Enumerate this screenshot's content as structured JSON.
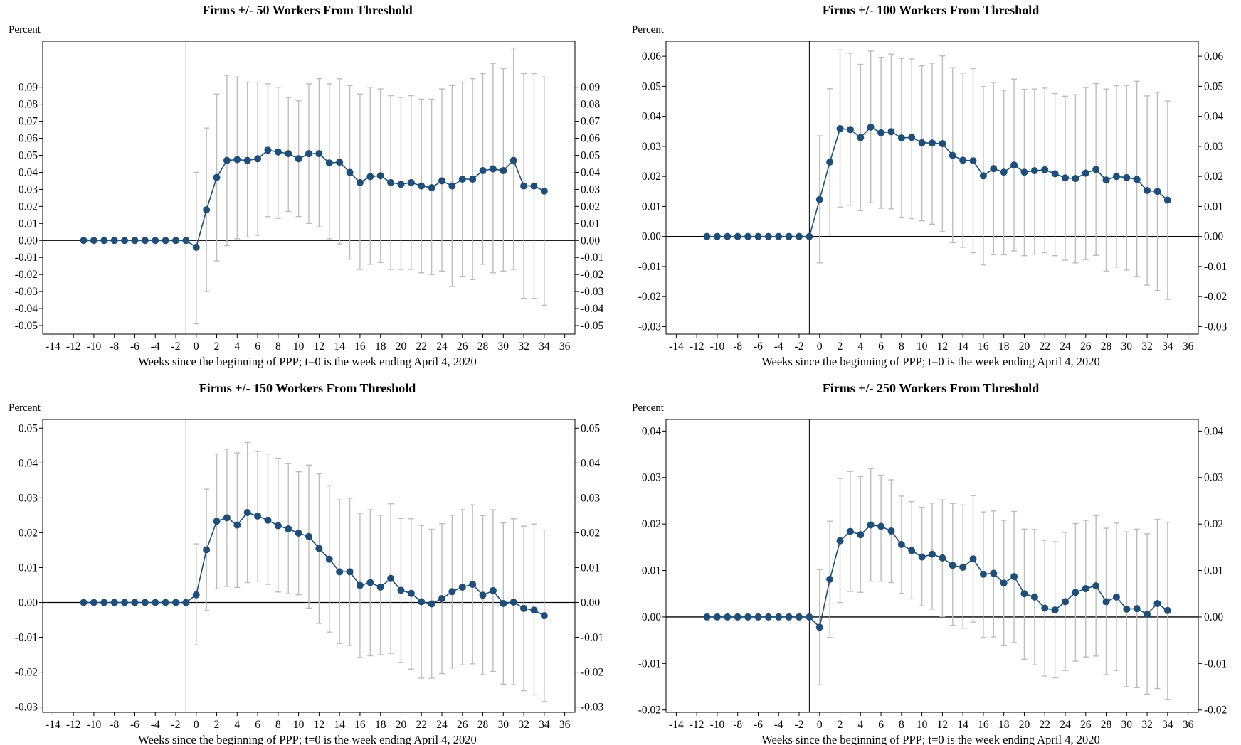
{
  "colors": {
    "series": "#1f4e79",
    "ci": "#bdbdbd",
    "axis": "#000000"
  },
  "chart_data": [
    {
      "type": "line",
      "title": "Firms +/- 50 Workers From Threshold",
      "ylabel": "Percent",
      "xlabel": "Weeks since the beginning of PPP; t=0 is the week ending April 4, 2020",
      "xlim": [
        -15,
        37
      ],
      "ylim": [
        -0.055,
        0.117
      ],
      "xticks": [
        -14,
        -12,
        -10,
        -8,
        -6,
        -4,
        -2,
        0,
        2,
        4,
        6,
        8,
        10,
        12,
        14,
        16,
        18,
        20,
        22,
        24,
        26,
        28,
        30,
        32,
        34,
        36
      ],
      "yticks": [
        -0.05,
        -0.04,
        -0.03,
        -0.02,
        -0.01,
        0,
        0.01,
        0.02,
        0.03,
        0.04,
        0.05,
        0.06,
        0.07,
        0.08,
        0.09
      ],
      "ytick_labels": [
        "-0.05",
        "-0.04",
        "-0.03",
        "-0.02",
        "-0.01",
        "0.00",
        "0.01",
        "0.02",
        "0.03",
        "0.04",
        "0.05",
        "0.06",
        "0.07",
        "0.08",
        "0.09"
      ],
      "series": [
        {
          "x": [
            -11,
            -10,
            -9,
            -8,
            -7,
            -6,
            -5,
            -4,
            -3,
            -2,
            -1,
            0,
            1,
            2,
            3,
            4,
            5,
            6,
            7,
            8,
            9,
            10,
            11,
            12,
            13,
            14,
            15,
            16,
            17,
            18,
            19,
            20,
            21,
            22,
            23,
            24,
            25,
            26,
            27,
            28,
            29,
            30,
            31,
            32,
            33,
            34
          ],
          "y": [
            0,
            0,
            0,
            0,
            0,
            0,
            0,
            0,
            0,
            0,
            0,
            -0.004,
            0.018,
            0.037,
            0.047,
            0.0475,
            0.047,
            0.048,
            0.053,
            0.052,
            0.051,
            0.048,
            0.051,
            0.051,
            0.0455,
            0.046,
            0.04,
            0.034,
            0.0375,
            0.038,
            0.034,
            0.033,
            0.034,
            0.032,
            0.031,
            0.035,
            0.032,
            0.036,
            0.036,
            0.041,
            0.042,
            0.041,
            0.047,
            0.032,
            0.032,
            0.029
          ],
          "ci_low": [
            null,
            null,
            null,
            null,
            null,
            null,
            null,
            null,
            null,
            null,
            null,
            -0.049,
            -0.03,
            -0.012,
            -0.003,
            0.001,
            0.002,
            0.003,
            0.014,
            0.013,
            0.017,
            0.014,
            0.01,
            0.008,
            0.001,
            -0.002,
            -0.011,
            -0.017,
            -0.014,
            -0.013,
            -0.017,
            -0.017,
            -0.017,
            -0.019,
            -0.02,
            -0.018,
            -0.027,
            -0.021,
            -0.023,
            -0.014,
            -0.019,
            -0.018,
            -0.017,
            -0.034,
            -0.034,
            -0.038
          ],
          "ci_high": [
            null,
            null,
            null,
            null,
            null,
            null,
            null,
            null,
            null,
            null,
            null,
            0.04,
            0.066,
            0.086,
            0.097,
            0.096,
            0.093,
            0.093,
            0.092,
            0.09,
            0.084,
            0.082,
            0.092,
            0.095,
            0.092,
            0.095,
            0.091,
            0.086,
            0.09,
            0.089,
            0.085,
            0.084,
            0.085,
            0.083,
            0.083,
            0.089,
            0.091,
            0.093,
            0.095,
            0.098,
            0.104,
            0.101,
            0.113,
            0.098,
            0.098,
            0.096
          ]
        }
      ]
    },
    {
      "type": "line",
      "title": "Firms +/- 100 Workers From Threshold",
      "ylabel": "Percent",
      "xlabel": "Weeks since the beginning of PPP; t=0 is the week ending April 4, 2020",
      "xlim": [
        -15,
        37
      ],
      "ylim": [
        -0.0325,
        0.065
      ],
      "xticks": [
        -14,
        -12,
        -10,
        -8,
        -6,
        -4,
        -2,
        0,
        2,
        4,
        6,
        8,
        10,
        12,
        14,
        16,
        18,
        20,
        22,
        24,
        26,
        28,
        30,
        32,
        34,
        36
      ],
      "yticks": [
        -0.03,
        -0.02,
        -0.01,
        0,
        0.01,
        0.02,
        0.03,
        0.04,
        0.05,
        0.06
      ],
      "ytick_labels": [
        "-0.03",
        "-0.02",
        "-0.01",
        "0.00",
        "0.01",
        "0.02",
        "0.03",
        "0.04",
        "0.05",
        "0.06"
      ],
      "series": [
        {
          "x": [
            -11,
            -10,
            -9,
            -8,
            -7,
            -6,
            -5,
            -4,
            -3,
            -2,
            -1,
            0,
            1,
            2,
            3,
            4,
            5,
            6,
            7,
            8,
            9,
            10,
            11,
            12,
            13,
            14,
            15,
            16,
            17,
            18,
            19,
            20,
            21,
            22,
            23,
            24,
            25,
            26,
            27,
            28,
            29,
            30,
            31,
            32,
            33,
            34
          ],
          "y": [
            0,
            0,
            0,
            0,
            0,
            0,
            0,
            0,
            0,
            0,
            0,
            0.0123,
            0.0248,
            0.0359,
            0.0356,
            0.0329,
            0.0364,
            0.0345,
            0.0349,
            0.0328,
            0.033,
            0.0312,
            0.0311,
            0.0309,
            0.027,
            0.0254,
            0.0252,
            0.0202,
            0.0226,
            0.0214,
            0.0238,
            0.0214,
            0.0219,
            0.0222,
            0.0209,
            0.0195,
            0.0193,
            0.0211,
            0.0223,
            0.0188,
            0.02,
            0.0196,
            0.019,
            0.0153,
            0.015,
            0.0121
          ],
          "ci_low": [
            null,
            null,
            null,
            null,
            null,
            null,
            null,
            null,
            null,
            null,
            null,
            -0.0088,
            0.0005,
            0.0098,
            0.0104,
            0.0086,
            0.0112,
            0.0094,
            0.0092,
            0.0064,
            0.006,
            0.0052,
            0.0041,
            0.0016,
            -0.0021,
            -0.0036,
            -0.0054,
            -0.0095,
            -0.0061,
            -0.0061,
            -0.0048,
            -0.0064,
            -0.0059,
            -0.0054,
            -0.0064,
            -0.0079,
            -0.0088,
            -0.0077,
            -0.0063,
            -0.0115,
            -0.0102,
            -0.0112,
            -0.0133,
            -0.0162,
            -0.018,
            -0.0209
          ],
          "ci_high": [
            null,
            null,
            null,
            null,
            null,
            null,
            null,
            null,
            null,
            null,
            null,
            0.0335,
            0.0492,
            0.0621,
            0.061,
            0.0573,
            0.0617,
            0.0596,
            0.0607,
            0.0593,
            0.0591,
            0.0568,
            0.0577,
            0.0601,
            0.0562,
            0.0544,
            0.0559,
            0.0499,
            0.0513,
            0.0487,
            0.0524,
            0.049,
            0.0491,
            0.0494,
            0.0476,
            0.0467,
            0.0472,
            0.0496,
            0.0509,
            0.0491,
            0.0502,
            0.0503,
            0.0517,
            0.0468,
            0.048,
            0.0451
          ]
        }
      ]
    },
    {
      "type": "line",
      "title": "Firms +/- 150 Workers From Threshold",
      "ylabel": "Percent",
      "xlabel": "Weeks since the beginning of PPP; t=0 is the week ending April 4, 2020",
      "xlim": [
        -15,
        37
      ],
      "ylim": [
        -0.0315,
        0.0525
      ],
      "xticks": [
        -14,
        -12,
        -10,
        -8,
        -6,
        -4,
        -2,
        0,
        2,
        4,
        6,
        8,
        10,
        12,
        14,
        16,
        18,
        20,
        22,
        24,
        26,
        28,
        30,
        32,
        34,
        36
      ],
      "yticks": [
        -0.03,
        -0.02,
        -0.01,
        0,
        0.01,
        0.02,
        0.03,
        0.04,
        0.05
      ],
      "ytick_labels": [
        "-0.03",
        "-0.02",
        "-0.01",
        "0.00",
        "0.01",
        "0.02",
        "0.03",
        "0.04",
        "0.05"
      ],
      "series": [
        {
          "x": [
            -11,
            -10,
            -9,
            -8,
            -7,
            -6,
            -5,
            -4,
            -3,
            -2,
            -1,
            0,
            1,
            2,
            3,
            4,
            5,
            6,
            7,
            8,
            9,
            10,
            11,
            12,
            13,
            14,
            15,
            16,
            17,
            18,
            19,
            20,
            21,
            22,
            23,
            24,
            25,
            26,
            27,
            28,
            29,
            30,
            31,
            32,
            33,
            34
          ],
          "y": [
            0,
            0,
            0,
            0,
            0,
            0,
            0,
            0,
            0,
            0,
            0,
            0.0022,
            0.0151,
            0.0233,
            0.0243,
            0.0222,
            0.0258,
            0.0248,
            0.0236,
            0.022,
            0.0211,
            0.0199,
            0.0189,
            0.0155,
            0.0124,
            0.0088,
            0.0088,
            0.0049,
            0.0057,
            0.0044,
            0.0069,
            0.0035,
            0.0026,
            0.0002,
            -0.0004,
            0.0011,
            0.0031,
            0.0044,
            0.0052,
            0.0021,
            0.0034,
            -0.0003,
            0.0001,
            -0.0017,
            -0.0022,
            -0.0038
          ],
          "ci_low": [
            null,
            null,
            null,
            null,
            null,
            null,
            null,
            null,
            null,
            null,
            null,
            -0.0122,
            -0.0023,
            0.0039,
            0.0046,
            0.0043,
            0.0057,
            0.0061,
            0.0052,
            0.003,
            0.0025,
            0.0022,
            -0.0016,
            -0.006,
            -0.0085,
            -0.0118,
            -0.0123,
            -0.0158,
            -0.0153,
            -0.015,
            -0.0146,
            -0.0172,
            -0.0191,
            -0.0217,
            -0.0217,
            -0.0204,
            -0.0188,
            -0.0179,
            -0.0176,
            -0.0207,
            -0.0198,
            -0.0234,
            -0.0236,
            -0.0253,
            -0.0265,
            -0.0284
          ],
          "ci_high": [
            null,
            null,
            null,
            null,
            null,
            null,
            null,
            null,
            null,
            null,
            null,
            0.0168,
            0.0325,
            0.0426,
            0.044,
            0.0429,
            0.0459,
            0.0433,
            0.0426,
            0.0414,
            0.0398,
            0.0375,
            0.0394,
            0.0369,
            0.0335,
            0.0294,
            0.0299,
            0.0256,
            0.0266,
            0.025,
            0.0283,
            0.0241,
            0.024,
            0.0221,
            0.021,
            0.0226,
            0.025,
            0.0266,
            0.028,
            0.0249,
            0.0266,
            0.0228,
            0.024,
            0.0219,
            0.0225,
            0.0208
          ]
        }
      ]
    },
    {
      "type": "line",
      "title": "Firms +/- 250 Workers From Threshold",
      "ylabel": "Percent",
      "xlabel": "Weeks since the beginning of PPP; t=0 is the week ending April 4, 2020",
      "xlim": [
        -15,
        37
      ],
      "ylim": [
        -0.0205,
        0.0425
      ],
      "xticks": [
        -14,
        -12,
        -10,
        -8,
        -6,
        -4,
        -2,
        0,
        2,
        4,
        6,
        8,
        10,
        12,
        14,
        16,
        18,
        20,
        22,
        24,
        26,
        28,
        30,
        32,
        34,
        36
      ],
      "yticks": [
        -0.02,
        -0.01,
        0,
        0.01,
        0.02,
        0.03,
        0.04
      ],
      "ytick_labels": [
        "-0.02",
        "-0.01",
        "0.00",
        "0.01",
        "0.02",
        "0.03",
        "0.04"
      ],
      "series": [
        {
          "x": [
            -11,
            -10,
            -9,
            -8,
            -7,
            -6,
            -5,
            -4,
            -3,
            -2,
            -1,
            0,
            1,
            2,
            3,
            4,
            5,
            6,
            7,
            8,
            9,
            10,
            11,
            12,
            13,
            14,
            15,
            16,
            17,
            18,
            19,
            20,
            21,
            22,
            23,
            24,
            25,
            26,
            27,
            28,
            29,
            30,
            31,
            32,
            33,
            34
          ],
          "y": [
            0,
            0,
            0,
            0,
            0,
            0,
            0,
            0,
            0,
            0,
            0,
            -0.0022,
            0.0081,
            0.0164,
            0.0184,
            0.0177,
            0.0198,
            0.0195,
            0.0185,
            0.0156,
            0.0143,
            0.0129,
            0.0135,
            0.0127,
            0.0111,
            0.0107,
            0.0125,
            0.0092,
            0.0094,
            0.0073,
            0.0087,
            0.005,
            0.0043,
            0.0019,
            0.0015,
            0.0033,
            0.0053,
            0.0061,
            0.0067,
            0.0033,
            0.0043,
            0.0017,
            0.0018,
            0.0006,
            0.0029,
            0.0014
          ],
          "ci_low": [
            null,
            null,
            null,
            null,
            null,
            null,
            null,
            null,
            null,
            null,
            null,
            -0.0146,
            -0.0044,
            0.0031,
            0.0055,
            0.0053,
            0.0077,
            0.0077,
            0.0074,
            0.0051,
            0.0039,
            0.0024,
            0.0017,
            0.0001,
            -0.0018,
            -0.0024,
            -0.0011,
            -0.0044,
            -0.0043,
            -0.0062,
            -0.0055,
            -0.0091,
            -0.0103,
            -0.0127,
            -0.0131,
            -0.0115,
            -0.0095,
            -0.0086,
            -0.0084,
            -0.0124,
            -0.0115,
            -0.015,
            -0.0152,
            -0.0166,
            -0.0154,
            -0.0177
          ],
          "ci_high": [
            null,
            null,
            null,
            null,
            null,
            null,
            null,
            null,
            null,
            null,
            null,
            0.0102,
            0.0206,
            0.0298,
            0.0313,
            0.0302,
            0.0319,
            0.0305,
            0.0295,
            0.026,
            0.0248,
            0.0236,
            0.0245,
            0.0252,
            0.0244,
            0.0241,
            0.0261,
            0.0226,
            0.0228,
            0.0208,
            0.0227,
            0.0189,
            0.0188,
            0.0165,
            0.0162,
            0.0182,
            0.0201,
            0.0208,
            0.0218,
            0.0191,
            0.0202,
            0.0183,
            0.0189,
            0.0179,
            0.021,
            0.0204
          ]
        }
      ]
    }
  ]
}
